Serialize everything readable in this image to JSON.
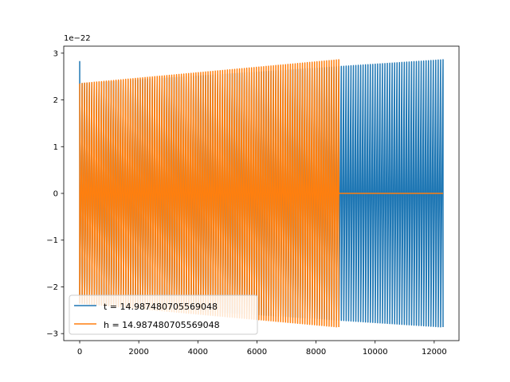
{
  "chart_data": {
    "type": "line",
    "title": "",
    "xlabel": "",
    "ylabel": "",
    "xlim": [
      -540,
      12840
    ],
    "ylim": [
      -3.15,
      3.15
    ],
    "y_offset_text": "1e−22",
    "x_ticks": [
      0,
      2000,
      4000,
      6000,
      8000,
      10000,
      12000
    ],
    "x_tick_labels": [
      "0",
      "2000",
      "4000",
      "6000",
      "8000",
      "10000",
      "12000"
    ],
    "y_ticks": [
      -3,
      -2,
      -1,
      0,
      1,
      2,
      3
    ],
    "y_tick_labels": [
      "−3",
      "−2",
      "−1",
      "0",
      "1",
      "2",
      "3"
    ],
    "grid": false,
    "legend_position": "lower-left",
    "series": [
      {
        "name": "t = 14.987480705569048",
        "color": "#1f77b4",
        "x_start": 0,
        "x_end": 12300,
        "initial_spike": 2.83,
        "amplitude_start": 2.35,
        "amplitude_end": 2.86,
        "oscillations": 150
      },
      {
        "name": "h = 14.987480705569048",
        "color": "#ff7f0e",
        "x_start": 0,
        "x_end": 8770,
        "flat_until": 12300,
        "flat_value": 0,
        "amplitude_start": 2.35,
        "amplitude_end": 2.86,
        "oscillations": 107
      }
    ]
  }
}
